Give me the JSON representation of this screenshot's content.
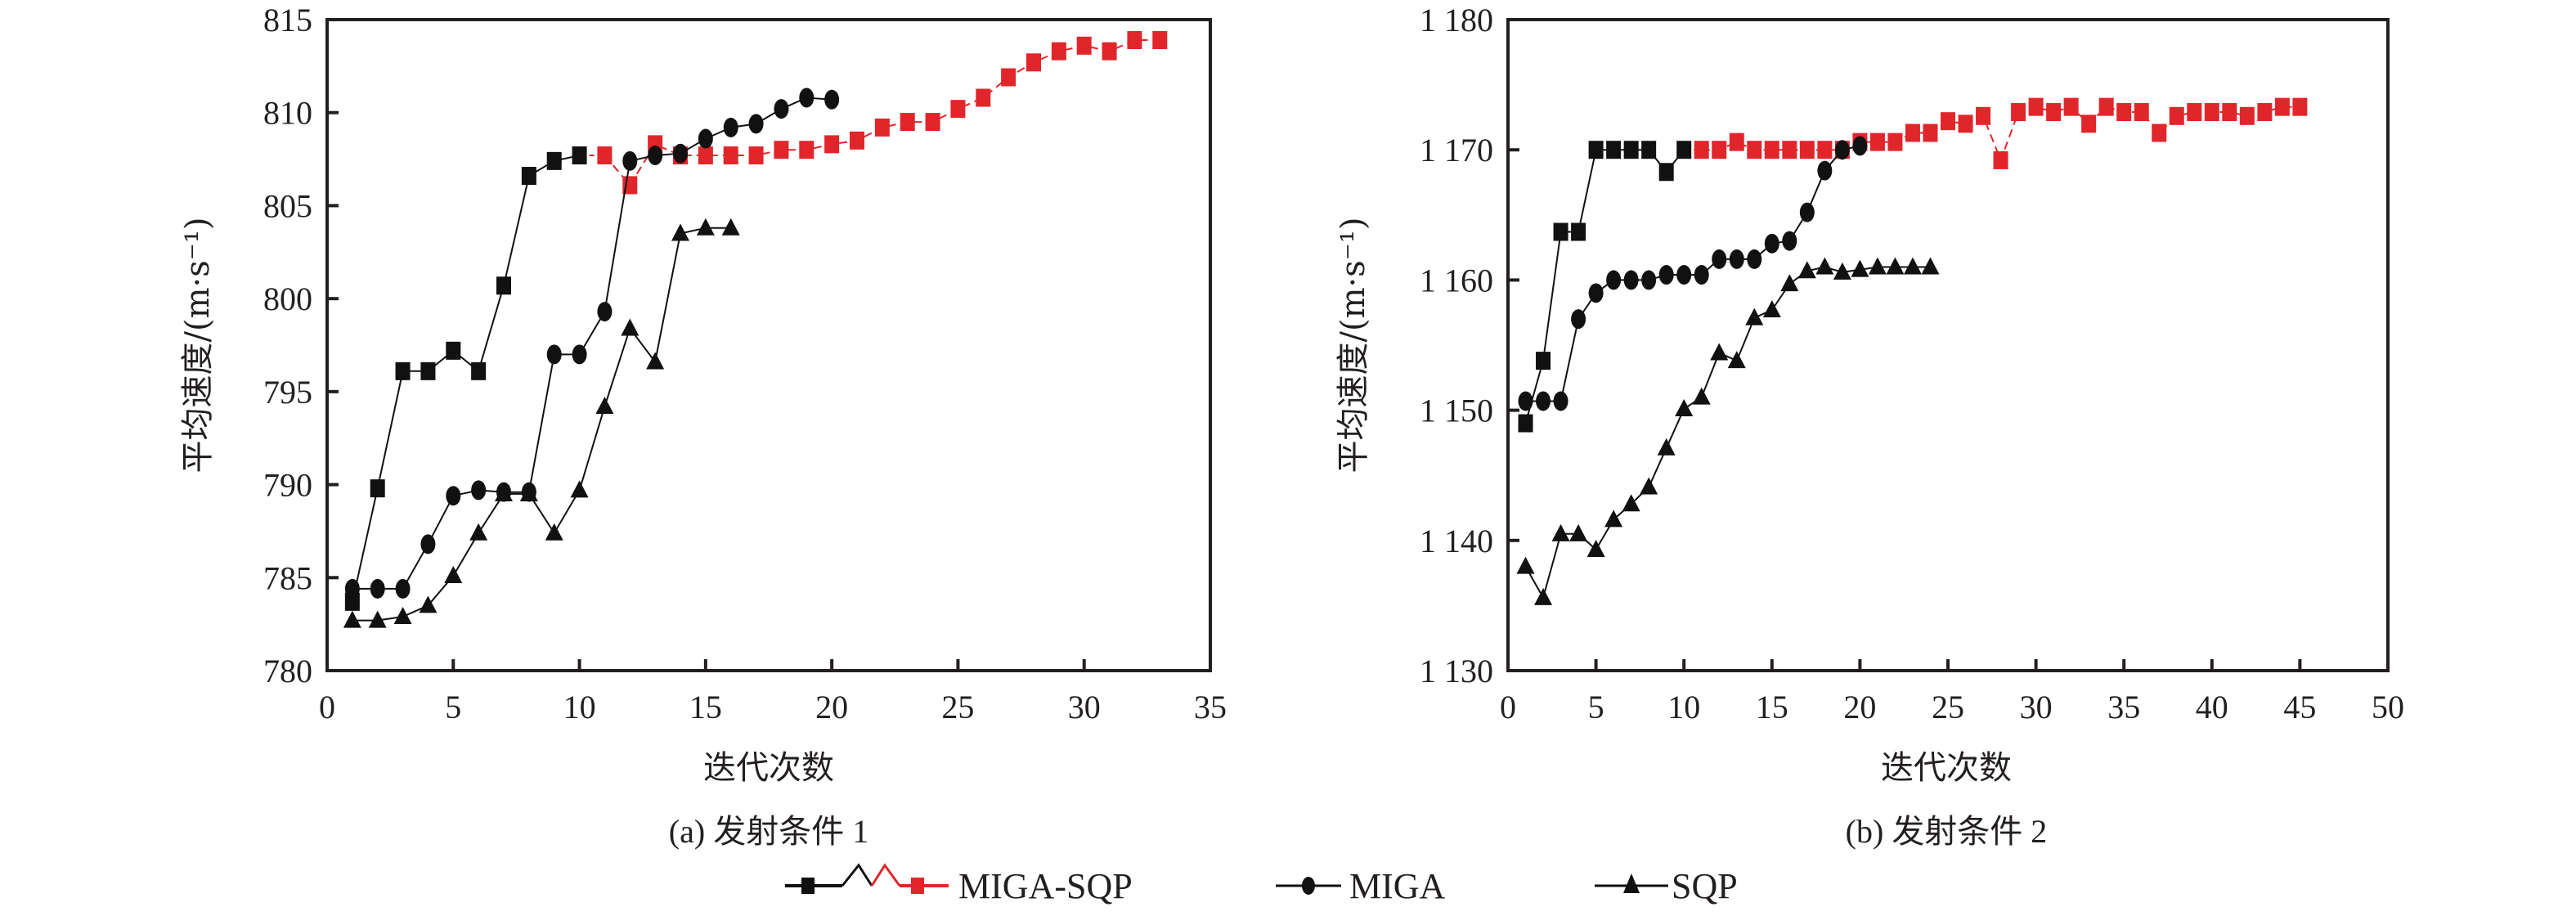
{
  "chart_data": [
    {
      "type": "line",
      "caption": "(a) 发射条件 1",
      "xlabel": "迭代次数",
      "ylabel": "平均速度/(m·s⁻¹)",
      "xlim": [
        0,
        35
      ],
      "ylim": [
        780,
        815
      ],
      "xticks": [
        0,
        5,
        10,
        15,
        20,
        25,
        30,
        35
      ],
      "yticks": [
        780,
        785,
        790,
        795,
        800,
        805,
        810,
        815
      ],
      "ytick_labels": [
        "780",
        "785",
        "790",
        "795",
        "800",
        "805",
        "810",
        "815"
      ],
      "grid": false,
      "series": [
        {
          "name": "MIGA-SQP (MIGA stage)",
          "legend": "MIGA-SQP",
          "marker": "square",
          "color": "#111111",
          "x": [
            1,
            2,
            3,
            4,
            5,
            6,
            7,
            8,
            9,
            10
          ],
          "y": [
            783.7,
            789.8,
            796.1,
            796.1,
            797.2,
            796.1,
            800.7,
            806.6,
            807.4,
            807.7
          ]
        },
        {
          "name": "MIGA-SQP (SQP stage)",
          "legend": "MIGA-SQP",
          "marker": "square",
          "color": "#e0262b",
          "x": [
            11,
            12,
            13,
            14,
            15,
            16,
            17,
            18,
            19,
            20,
            21,
            22,
            23,
            24,
            25,
            26,
            27,
            28,
            29,
            30,
            31,
            32,
            33
          ],
          "y": [
            807.7,
            806.1,
            808.3,
            807.7,
            807.7,
            807.7,
            807.7,
            808.0,
            808.0,
            808.3,
            808.5,
            809.2,
            809.5,
            809.5,
            810.2,
            810.8,
            811.9,
            812.7,
            813.3,
            813.6,
            813.3,
            813.9,
            813.9
          ]
        },
        {
          "name": "MIGA",
          "legend": "MIGA",
          "marker": "circle",
          "color": "#111111",
          "x": [
            1,
            2,
            3,
            4,
            5,
            6,
            7,
            8,
            9,
            10,
            11,
            12,
            13,
            14,
            15,
            16,
            17,
            18,
            19,
            20
          ],
          "y": [
            784.4,
            784.4,
            784.4,
            786.8,
            789.4,
            789.7,
            789.6,
            789.6,
            797.0,
            797.0,
            799.3,
            807.4,
            807.7,
            807.8,
            808.6,
            809.2,
            809.4,
            810.2,
            810.8,
            810.7
          ]
        },
        {
          "name": "SQP",
          "legend": "SQP",
          "marker": "triangle",
          "color": "#111111",
          "x": [
            1,
            2,
            3,
            4,
            5,
            6,
            7,
            8,
            9,
            10,
            11,
            12,
            13,
            14,
            15,
            16
          ],
          "y": [
            782.7,
            782.7,
            782.9,
            783.5,
            785.1,
            787.4,
            789.5,
            789.5,
            787.4,
            789.7,
            794.2,
            798.4,
            796.6,
            803.5,
            803.8,
            803.8
          ]
        }
      ]
    },
    {
      "type": "line",
      "caption": "(b) 发射条件 2",
      "xlabel": "迭代次数",
      "ylabel": "平均速度/(m·s⁻¹)",
      "xlim": [
        0,
        50
      ],
      "ylim": [
        1130,
        1180
      ],
      "xticks": [
        0,
        5,
        10,
        15,
        20,
        25,
        30,
        35,
        40,
        45,
        50
      ],
      "yticks": [
        1130,
        1140,
        1150,
        1160,
        1170,
        1180
      ],
      "ytick_labels": [
        "1 130",
        "1 140",
        "1 150",
        "1 160",
        "1 170",
        "1 180"
      ],
      "grid": false,
      "series": [
        {
          "name": "MIGA-SQP (MIGA stage)",
          "legend": "MIGA-SQP",
          "marker": "square",
          "color": "#111111",
          "x": [
            1,
            2,
            3,
            4,
            5,
            6,
            7,
            8,
            9,
            10
          ],
          "y": [
            1149.0,
            1153.8,
            1163.7,
            1163.7,
            1170.0,
            1170.0,
            1170.0,
            1170.0,
            1168.3,
            1170.0
          ]
        },
        {
          "name": "MIGA-SQP (SQP stage)",
          "legend": "MIGA-SQP",
          "marker": "square",
          "color": "#e0262b",
          "x": [
            11,
            12,
            13,
            14,
            15,
            16,
            17,
            18,
            19,
            20,
            21,
            22,
            23,
            24,
            25,
            26,
            27,
            28,
            29,
            30,
            31,
            32,
            33,
            34,
            35,
            36,
            37,
            38,
            39,
            40,
            41,
            42,
            43,
            44,
            45
          ],
          "y": [
            1170.0,
            1170.0,
            1170.6,
            1170.0,
            1170.0,
            1170.0,
            1170.0,
            1170.0,
            1170.0,
            1170.6,
            1170.6,
            1170.6,
            1171.3,
            1171.3,
            1172.2,
            1172.0,
            1172.6,
            1169.2,
            1172.9,
            1173.3,
            1172.9,
            1173.3,
            1172.0,
            1173.3,
            1172.9,
            1172.9,
            1171.3,
            1172.6,
            1172.9,
            1172.9,
            1172.9,
            1172.6,
            1172.9,
            1173.3,
            1173.3
          ]
        },
        {
          "name": "MIGA",
          "legend": "MIGA",
          "marker": "circle",
          "color": "#111111",
          "x": [
            1,
            2,
            3,
            4,
            5,
            6,
            7,
            8,
            9,
            10,
            11,
            12,
            13,
            14,
            15,
            16,
            17,
            18,
            19,
            20
          ],
          "y": [
            1150.7,
            1150.7,
            1150.7,
            1157.0,
            1159.0,
            1160.0,
            1160.0,
            1160.0,
            1160.4,
            1160.4,
            1160.4,
            1161.6,
            1161.6,
            1161.6,
            1162.8,
            1163.0,
            1165.2,
            1168.4,
            1170.0,
            1170.3
          ]
        },
        {
          "name": "SQP",
          "legend": "SQP",
          "marker": "triangle",
          "color": "#111111",
          "x": [
            1,
            2,
            3,
            4,
            5,
            6,
            7,
            8,
            9,
            10,
            11,
            12,
            13,
            14,
            15,
            16,
            17,
            18,
            19,
            20,
            21,
            22,
            23,
            24
          ],
          "y": [
            1138.0,
            1135.6,
            1140.5,
            1140.5,
            1139.3,
            1141.6,
            1142.8,
            1144.1,
            1147.1,
            1150.1,
            1151.0,
            1154.4,
            1153.8,
            1157.1,
            1157.7,
            1159.7,
            1160.7,
            1161.0,
            1160.6,
            1160.8,
            1161.0,
            1161.0,
            1161.0,
            1161.0
          ]
        }
      ]
    }
  ],
  "legend": {
    "items": [
      {
        "label": "MIGA-SQP",
        "marker": "square",
        "colors": [
          "#111111",
          "#e0262b"
        ]
      },
      {
        "label": "MIGA",
        "marker": "circle",
        "colors": [
          "#111111"
        ]
      },
      {
        "label": "SQP",
        "marker": "triangle",
        "colors": [
          "#111111"
        ]
      }
    ],
    "placement": "bottom-center"
  }
}
